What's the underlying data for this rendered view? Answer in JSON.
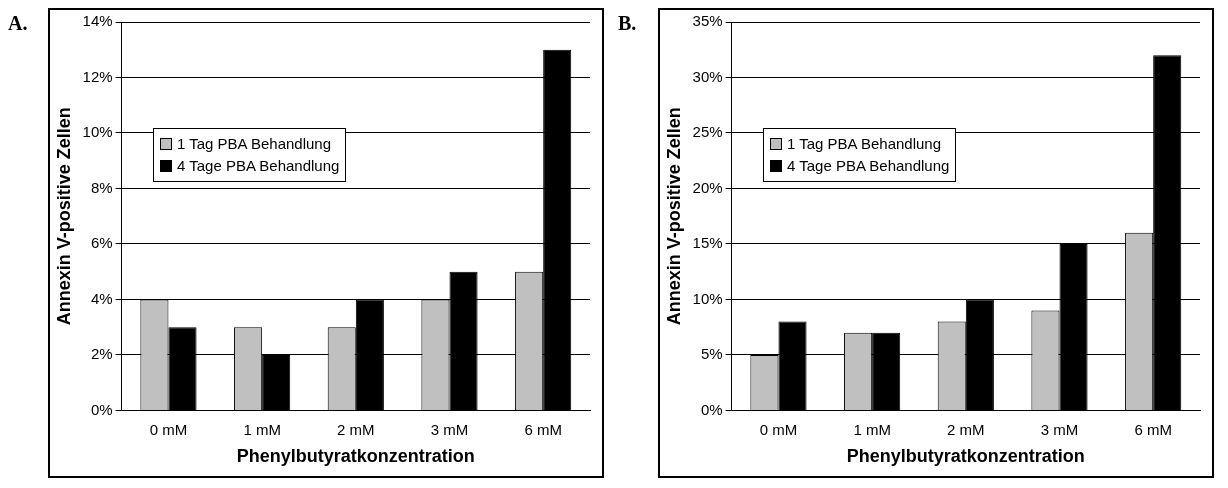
{
  "chart_data": [
    {
      "type": "bar",
      "title": "A.",
      "xlabel": "Phenylbutyratkonzentration",
      "ylabel": "Annexin V-positive Zellen",
      "categories": [
        "0 mM",
        "1 mM",
        "2 mM",
        "3 mM",
        "6 mM"
      ],
      "series": [
        {
          "name": "1 Tag PBA Behandlung",
          "color": "#c0c0c0",
          "values": [
            4,
            3,
            3,
            4,
            5
          ]
        },
        {
          "name": "4 Tage PBA Behandlung",
          "color": "#000000",
          "values": [
            3,
            2,
            4,
            5,
            13
          ]
        }
      ],
      "ylim": [
        0,
        14
      ],
      "yticks": [
        {
          "value": 0,
          "label": "0%"
        },
        {
          "value": 2,
          "label": "2%"
        },
        {
          "value": 4,
          "label": "4%"
        },
        {
          "value": 6,
          "label": "6%"
        },
        {
          "value": 8,
          "label": "8%"
        },
        {
          "value": 10,
          "label": "10%"
        },
        {
          "value": 12,
          "label": "12%"
        },
        {
          "value": 14,
          "label": "14%"
        }
      ],
      "grid": "y",
      "legend": "top left"
    },
    {
      "type": "bar",
      "title": "B.",
      "xlabel": "Phenylbutyratkonzentration",
      "ylabel": "Annexin V-positive Zellen",
      "categories": [
        "0 mM",
        "1 mM",
        "2 mM",
        "3 mM",
        "6 mM"
      ],
      "series": [
        {
          "name": "1 Tag PBA Behandlung",
          "color": "#c0c0c0",
          "values": [
            5,
            7,
            8,
            9,
            16
          ]
        },
        {
          "name": "4 Tage PBA Behandlung",
          "color": "#000000",
          "values": [
            8,
            7,
            10,
            15,
            32
          ]
        }
      ],
      "ylim": [
        0,
        35
      ],
      "yticks": [
        {
          "value": 0,
          "label": "0%"
        },
        {
          "value": 5,
          "label": "5%"
        },
        {
          "value": 10,
          "label": "10%"
        },
        {
          "value": 15,
          "label": "15%"
        },
        {
          "value": 20,
          "label": "20%"
        },
        {
          "value": 25,
          "label": "25%"
        },
        {
          "value": 30,
          "label": "30%"
        },
        {
          "value": 35,
          "label": "35%"
        }
      ],
      "grid": "y",
      "legend": "top left"
    }
  ]
}
